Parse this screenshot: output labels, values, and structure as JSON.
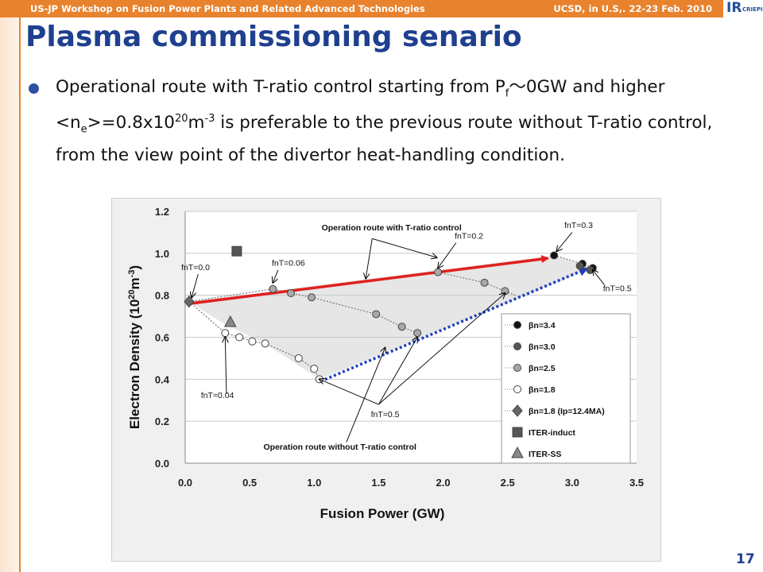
{
  "header": {
    "left_text": "US-JP  Workshop on Fusion Power Plants and Related Advanced Technologies",
    "right_text": "UCSD, in U.S,. 22-23 Feb. 2010",
    "logo_main": "IR",
    "logo_sub": "CRIEPI",
    "accent_color": "#e8822d"
  },
  "title": "Plasma commissioning senario",
  "bullet": {
    "t1": "Operational route with T-ratio control starting from P",
    "t1_sub": "f",
    "t2": "～0GW and higher <n",
    "t2_sub": "e",
    "t3": ">=0.8x10",
    "t3_sup": "20",
    "t4": "m",
    "t4_sup": "-3",
    "t5": " is preferable to the previous route without T-ratio control, from the view point of the divertor heat-handling condition."
  },
  "page_number": "17",
  "chart_data": {
    "type": "scatter",
    "xlabel": "Fusion Power  (GW)",
    "ylabel_main": "Electron Density  (10",
    "ylabel_sup": "20",
    "ylabel_unit": "m",
    "ylabel_unit_sup": "-3",
    "ylabel_close": ")",
    "xlim": [
      0.0,
      3.5
    ],
    "ylim": [
      0.0,
      1.2
    ],
    "x_ticks": [
      "0.0",
      "0.5",
      "1.0",
      "1.5",
      "2.0",
      "2.5",
      "3.0",
      "3.5"
    ],
    "y_ticks": [
      "0.0",
      "0.2",
      "0.4",
      "0.6",
      "0.8",
      "1.0",
      "1.2"
    ],
    "grid": true,
    "series": [
      {
        "name": "βn=3.4",
        "marker": "circle",
        "fill": "#111111",
        "points": [
          [
            2.86,
            0.99
          ],
          [
            3.08,
            0.95
          ],
          [
            3.16,
            0.93
          ]
        ]
      },
      {
        "name": "βn=3.0",
        "marker": "circle",
        "fill": "#555555",
        "points": [
          [
            3.06,
            0.94
          ],
          [
            3.14,
            0.92
          ]
        ]
      },
      {
        "name": "βn=2.5",
        "marker": "circle",
        "fill": "#a9a9a9",
        "points": [
          [
            0.68,
            0.83
          ],
          [
            0.82,
            0.81
          ],
          [
            0.98,
            0.79
          ],
          [
            1.48,
            0.71
          ],
          [
            1.68,
            0.65
          ],
          [
            1.8,
            0.62
          ],
          [
            1.96,
            0.91
          ],
          [
            2.32,
            0.86
          ],
          [
            2.48,
            0.82
          ]
        ]
      },
      {
        "name": "βn=1.8",
        "marker": "circle",
        "fill": "#ffffff",
        "points": [
          [
            0.31,
            0.62
          ],
          [
            0.42,
            0.6
          ],
          [
            0.52,
            0.58
          ],
          [
            0.62,
            0.57
          ],
          [
            0.88,
            0.5
          ],
          [
            1.0,
            0.45
          ],
          [
            1.04,
            0.4
          ]
        ]
      },
      {
        "name": "βn=1.8 (Ip=12.4MA)",
        "marker": "diamond",
        "fill": "#666666",
        "points": [
          [
            0.03,
            0.77
          ]
        ]
      },
      {
        "name": "ITER-induct",
        "marker": "square",
        "fill": "#555555",
        "points": [
          [
            0.4,
            1.01
          ]
        ]
      },
      {
        "name": "ITER-SS",
        "marker": "triangle",
        "fill": "#888888",
        "points": [
          [
            0.35,
            0.67
          ]
        ]
      }
    ],
    "routes": [
      {
        "name": "Operation route with T-ratio control",
        "color": "#e02020",
        "style": "solid",
        "from": [
          0.03,
          0.76
        ],
        "to": [
          2.86,
          0.98
        ]
      },
      {
        "name": "Operation route without T-ratio control",
        "color": "#1f3fbf",
        "style": "dotted",
        "from": [
          1.05,
          0.39
        ],
        "to": [
          3.16,
          0.93
        ]
      }
    ],
    "annotations": [
      {
        "text": "Operation route with T-ratio control",
        "x": 1.6,
        "y": 1.11
      },
      {
        "text": "Operation route without T-ratio control",
        "x": 1.2,
        "y": 0.065
      },
      {
        "text": "fnT=0.0",
        "x": 0.08,
        "y": 0.92
      },
      {
        "text": "fnT=0.06",
        "x": 0.8,
        "y": 0.94
      },
      {
        "text": "fnT=0.2",
        "x": 2.2,
        "y": 1.07
      },
      {
        "text": "fnT=0.3",
        "x": 3.05,
        "y": 1.12
      },
      {
        "text": "fnT=0.5",
        "x": 3.35,
        "y": 0.82
      },
      {
        "text": "fnT=0.04",
        "x": 0.25,
        "y": 0.31
      },
      {
        "text": "fnT=0.5",
        "x": 1.55,
        "y": 0.22
      }
    ],
    "colors": {
      "shade": "#e6e6e6",
      "grid": "#c8c8c8",
      "plot_bg": "#ffffff",
      "outer_bg": "#f0f0f0"
    }
  }
}
